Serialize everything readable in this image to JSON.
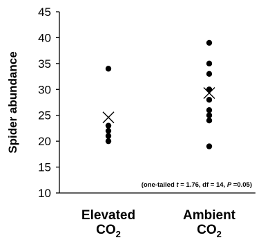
{
  "chart_data": {
    "type": "scatter",
    "ylabel": "Spider abundance",
    "ylim": [
      10,
      45
    ],
    "yticks": [
      10,
      15,
      20,
      25,
      30,
      35,
      40,
      45
    ],
    "groups": [
      {
        "label_main": "Elevated",
        "label_chem": "CO",
        "label_sub": "2",
        "points": [
          34,
          23,
          22,
          21,
          20
        ],
        "mean": 24.6
      },
      {
        "label_main": "Ambient",
        "label_chem": "CO",
        "label_sub": "2",
        "points": [
          39,
          35,
          33,
          30,
          28,
          26,
          25,
          24,
          19
        ],
        "mean": 29.3
      }
    ],
    "annotation": {
      "open": "(one-tailed ",
      "t_symbol": "t",
      "mid": " = 1.76, df = 14, ",
      "p_symbol": "P",
      "close": " =0.05)"
    },
    "point_color": "#000000",
    "mean_marker": "x-cross"
  }
}
